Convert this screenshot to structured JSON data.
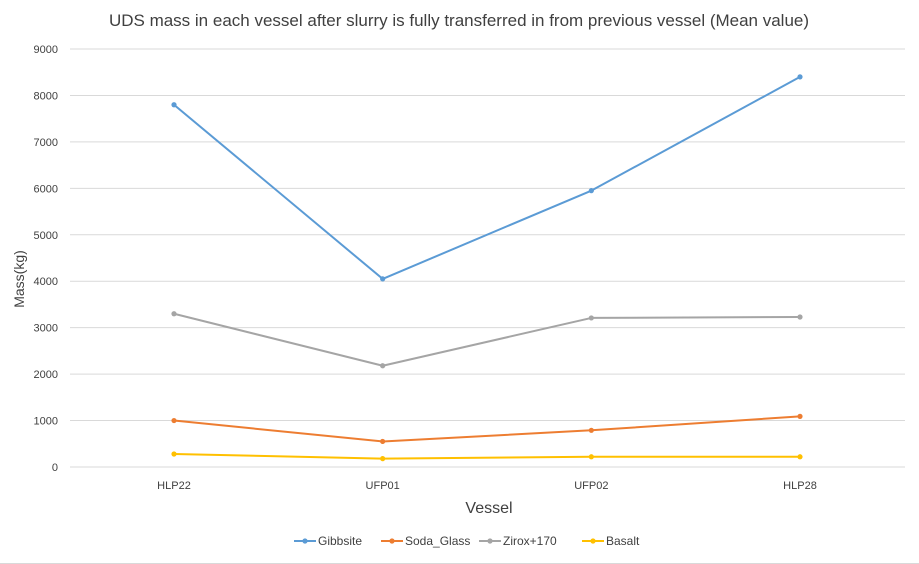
{
  "chart_data": {
    "type": "line",
    "title": "UDS mass in each vessel after slurry is fully transferred in from previous vessel (Mean value)",
    "xlabel": "Vessel",
    "ylabel": "Mass(kg)",
    "categories": [
      "HLP22",
      "UFP01",
      "UFP02",
      "HLP28"
    ],
    "ylim": [
      0,
      9000
    ],
    "yticks": [
      "0",
      "1000",
      "2000",
      "3000",
      "4000",
      "5000",
      "6000",
      "7000",
      "8000",
      "9000"
    ],
    "grid": true,
    "legend": "bottom",
    "series": [
      {
        "name": "Gibbsite",
        "color": "#5b9bd5",
        "values": [
          7800,
          4050,
          5950,
          8400
        ]
      },
      {
        "name": "Soda_Glass",
        "color": "#ed7d31",
        "values": [
          1000,
          550,
          790,
          1090
        ]
      },
      {
        "name": "Zirox+170",
        "color": "#a5a5a5",
        "values": [
          3300,
          2180,
          3210,
          3230
        ]
      },
      {
        "name": "Basalt",
        "color": "#ffc000",
        "values": [
          280,
          180,
          220,
          220
        ]
      }
    ]
  }
}
